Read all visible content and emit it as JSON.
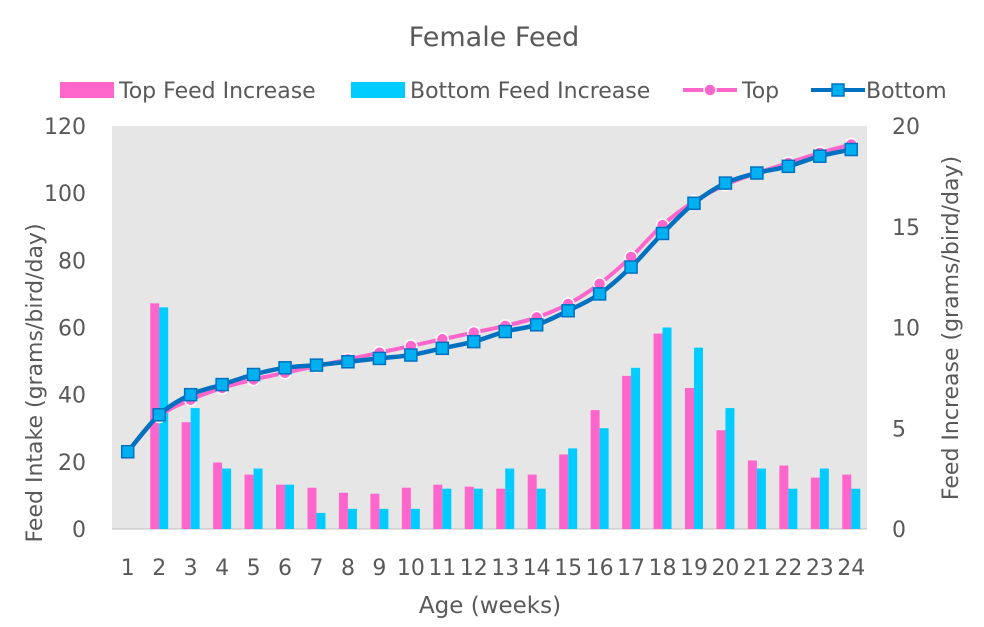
{
  "chart_data": {
    "type": "bar+line",
    "title": "Female Feed",
    "xlabel": "Age (weeks)",
    "ylabel_left": "Feed Intake (grams/bird/day)",
    "ylabel_right": "Feed Increase (grams/bird/day)",
    "ylim_left": [
      0,
      120
    ],
    "ylim_right": [
      0,
      20
    ],
    "yticks_left": [
      "0",
      "20",
      "40",
      "60",
      "80",
      "100",
      "120"
    ],
    "yticks_right": [
      "0",
      "5",
      "10",
      "15",
      "20"
    ],
    "categories": [
      "1",
      "2",
      "3",
      "4",
      "5",
      "6",
      "7",
      "8",
      "9",
      "10",
      "11",
      "12",
      "13",
      "14",
      "15",
      "16",
      "17",
      "18",
      "19",
      "20",
      "21",
      "22",
      "23",
      "24"
    ],
    "legend_position": "top",
    "plot_background": "#e6e6e6",
    "bar_series": [
      {
        "name": "Top Feed Increase",
        "color": "#ff66cc",
        "axis": "right",
        "values": [
          0,
          11.2,
          5.3,
          3.3,
          2.7,
          2.2,
          2.05,
          1.8,
          1.75,
          2.05,
          2.2,
          2.1,
          2.0,
          2.7,
          3.7,
          5.9,
          7.6,
          9.7,
          7.0,
          4.9,
          3.4,
          3.15,
          2.55,
          2.7
        ]
      },
      {
        "name": "Bottom Feed Increase",
        "color": "#00ccff",
        "axis": "right",
        "values": [
          0,
          11.0,
          6.0,
          3.0,
          3.0,
          2.2,
          0.8,
          1.0,
          1.0,
          1.0,
          2.0,
          2.0,
          3.0,
          2.0,
          4.0,
          5.0,
          8.0,
          10.0,
          9.0,
          6.0,
          3.0,
          2.0,
          3.0,
          2.0
        ]
      }
    ],
    "line_series": [
      {
        "name": "Top",
        "color": "#ff66cc",
        "marker": "circle",
        "axis": "left",
        "values": [
          23,
          33.5,
          38.5,
          42,
          44.5,
          46.5,
          48.5,
          50.5,
          52.5,
          54.5,
          56.5,
          58.5,
          60.5,
          63,
          67,
          73,
          81,
          90.5,
          97.5,
          102.5,
          106,
          109,
          112,
          114.5
        ]
      },
      {
        "name": "Bottom",
        "color": "#0070c0",
        "marker": "square",
        "axis": "left",
        "values": [
          23,
          34,
          40,
          43,
          46,
          48,
          48.8,
          49.8,
          50.8,
          51.8,
          53.8,
          55.8,
          58.8,
          60.8,
          65,
          70,
          78,
          88,
          97,
          103,
          106,
          108,
          111,
          113
        ]
      }
    ]
  }
}
